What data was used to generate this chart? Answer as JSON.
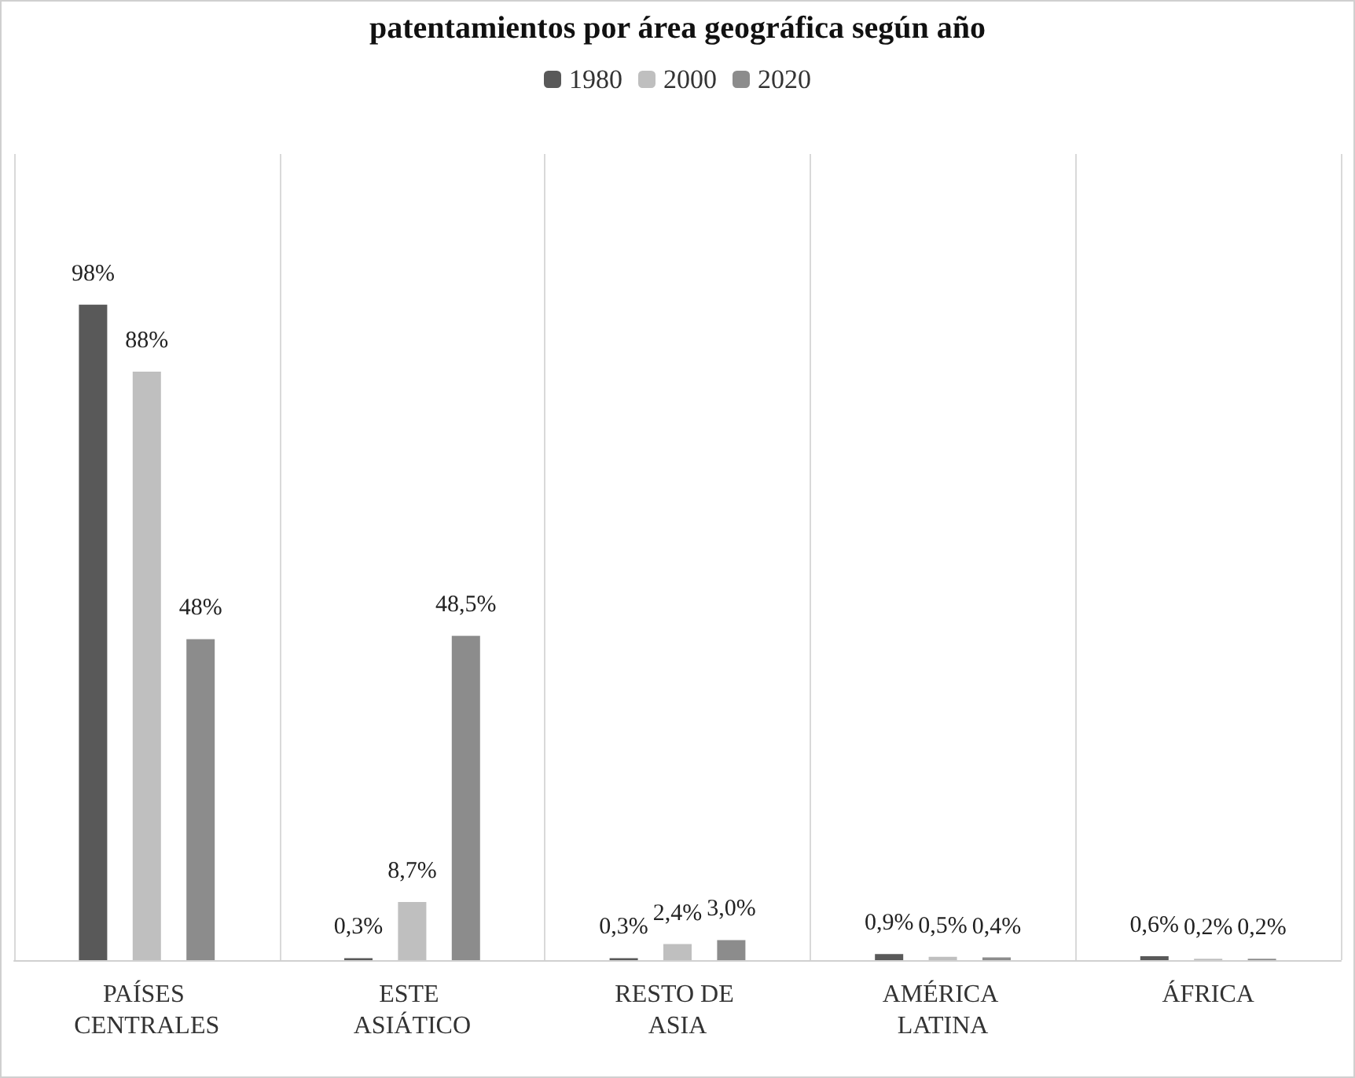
{
  "chart_data": {
    "type": "bar",
    "title": "patentamientos por área geográfica según año",
    "categories": [
      "PAÍSES CENTRALES",
      "ESTE ASIÁTICO",
      "RESTO DE ASIA",
      "AMÉRICA LATINA",
      "ÁFRICA"
    ],
    "series": [
      {
        "name": "1980",
        "color": "#595959",
        "values": [
          98,
          0.3,
          0.3,
          0.9,
          0.6
        ],
        "value_labels": [
          "98%",
          "0,3%",
          "0,3%",
          "0,9%",
          "0,6%"
        ]
      },
      {
        "name": "2000",
        "color": "#bfbfbf",
        "values": [
          88,
          8.7,
          2.4,
          0.5,
          0.2
        ],
        "value_labels": [
          "88%",
          "8,7%",
          "2,4%",
          "0,5%",
          "0,2%"
        ]
      },
      {
        "name": "2020",
        "color": "#8c8c8c",
        "values": [
          48,
          48.5,
          3.0,
          0.4,
          0.2
        ],
        "value_labels": [
          "48%",
          "48,5%",
          "3,0%",
          "0,4%",
          "0,2%"
        ]
      }
    ],
    "grid": "x",
    "legend": "top"
  }
}
